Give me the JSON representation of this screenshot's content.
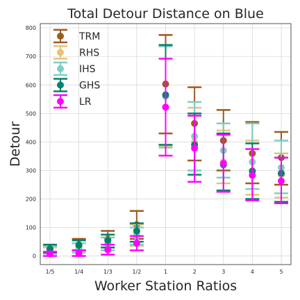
{
  "chart_data": {
    "type": "scatter",
    "title": "Total Detour Distance on Blue",
    "xlabel": "Worker Station Ratios",
    "ylabel": "Detour",
    "categories": [
      "1/5",
      "1/4",
      "1/3",
      "1/2",
      "1",
      "2",
      "3",
      "4",
      "5"
    ],
    "ylim": [
      -30,
      815
    ],
    "yticks": [
      0,
      100,
      200,
      300,
      400,
      500,
      600,
      700,
      800
    ],
    "grid": true,
    "legend_position": "top-left",
    "series": [
      {
        "name": "TRM",
        "color": "#9c5a1e",
        "values": [
          26,
          40,
          60,
          110,
          603,
          465,
          405,
          360,
          345
        ],
        "lower": [
          13,
          20,
          30,
          60,
          430,
          335,
          300,
          255,
          250
        ],
        "upper": [
          40,
          60,
          88,
          158,
          775,
          592,
          512,
          470,
          435
        ]
      },
      {
        "name": "RHS",
        "color": "#e6c27a",
        "values": [
          20,
          30,
          45,
          80,
          565,
          400,
          330,
          295,
          285
        ],
        "lower": [
          10,
          12,
          20,
          35,
          385,
          300,
          255,
          215,
          205
        ],
        "upper": [
          30,
          45,
          65,
          110,
          740,
          520,
          440,
          405,
          360
        ]
      },
      {
        "name": "IHS",
        "color": "#80cdc1",
        "values": [
          22,
          30,
          42,
          70,
          560,
          420,
          370,
          330,
          310
        ],
        "lower": [
          8,
          12,
          20,
          40,
          380,
          300,
          275,
          235,
          220
        ],
        "upper": [
          35,
          45,
          65,
          100,
          735,
          540,
          465,
          465,
          405
        ]
      },
      {
        "name": "GHS",
        "color": "#01806b",
        "values": [
          25,
          38,
          55,
          88,
          565,
          390,
          320,
          298,
          290
        ],
        "lower": [
          12,
          20,
          30,
          50,
          390,
          285,
          230,
          200,
          190
        ],
        "upper": [
          40,
          55,
          75,
          115,
          740,
          500,
          430,
          395,
          345
        ]
      },
      {
        "name": "LR",
        "color": "#ff00ff",
        "values": [
          8,
          10,
          22,
          45,
          522,
          378,
          325,
          283,
          263
        ],
        "lower": [
          0,
          0,
          5,
          20,
          352,
          260,
          225,
          195,
          185
        ],
        "upper": [
          15,
          20,
          40,
          70,
          692,
          492,
          425,
          375,
          345
        ]
      }
    ]
  }
}
